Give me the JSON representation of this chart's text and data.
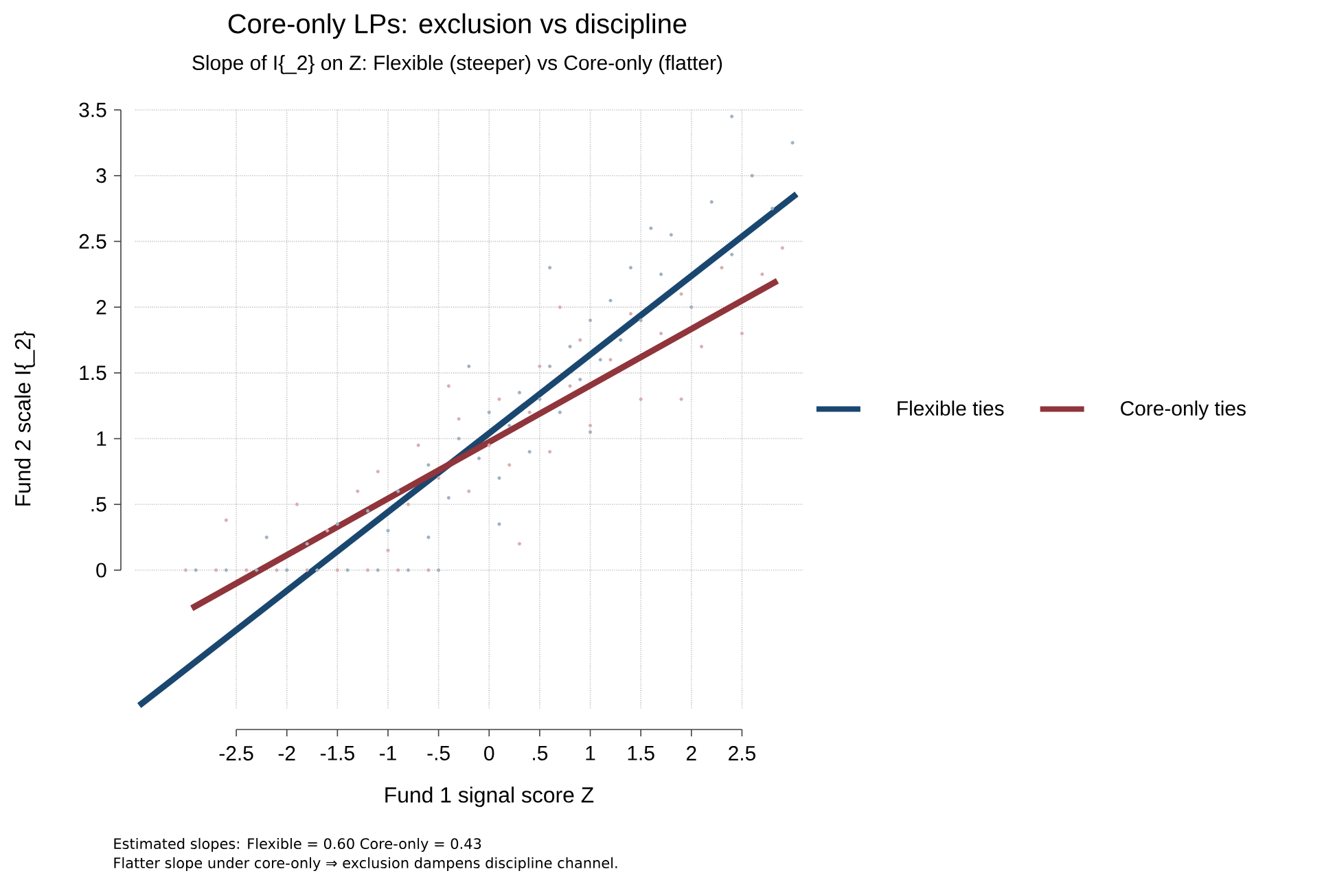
{
  "chart_data": {
    "type": "scatter",
    "title": "Core-only LPs: exclusion vs discipline",
    "subtitle": "Slope of I{_2} on Z: Flexible (steeper) vs Core-only (flatter)",
    "xlabel": "Fund 1 signal score  Z",
    "ylabel": "Fund 2 scale  I{_2}",
    "xlim": [
      -3.5,
      3.1
    ],
    "ylim": [
      -1.05,
      3.5
    ],
    "xticks": [
      -2.5,
      -2,
      -1.5,
      -1,
      {
        "value": -0.5,
        "label": "-.5"
      },
      0,
      {
        "value": 0.5,
        "label": ".5"
      },
      1,
      1.5,
      2,
      2.5
    ],
    "yticks": [
      0,
      {
        "value": 0.5,
        "label": ".5"
      },
      1,
      1.5,
      2,
      2.5,
      3,
      3.5
    ],
    "grid": true,
    "legend": "right",
    "series": [
      {
        "marker": "circle",
        "color": "#9fb0c2",
        "x": [
          -2.9,
          -2.6,
          -2.3,
          -2.0,
          -1.7,
          -1.4,
          -1.1,
          -0.8,
          -0.5,
          -2.2,
          -1.8,
          -1.5,
          -1.2,
          -1.0,
          -0.9,
          -0.6,
          -0.4,
          -0.3,
          -0.1,
          0,
          0.1,
          0.2,
          0.3,
          0.4,
          0.5,
          0.6,
          0.7,
          0.8,
          0.9,
          1.0,
          1.1,
          1.2,
          1.3,
          1.4,
          1.5,
          1.7,
          1.8,
          2.0,
          2.2,
          2.4,
          2.6,
          2.8,
          3.0,
          2.4,
          -0.2,
          0.6,
          0.1,
          1.0,
          -0.6,
          1.6
        ],
        "values": [
          0,
          0,
          0,
          0,
          0,
          0,
          0,
          0,
          0,
          0.25,
          0.2,
          0.35,
          0.45,
          0.3,
          0.6,
          0.8,
          0.55,
          1.0,
          0.85,
          1.2,
          0.7,
          1.1,
          1.35,
          0.9,
          1.3,
          1.55,
          1.2,
          1.7,
          1.45,
          1.9,
          1.6,
          2.05,
          1.75,
          2.3,
          1.9,
          2.25,
          2.55,
          2.0,
          2.8,
          2.4,
          3.0,
          2.75,
          3.25,
          3.45,
          1.55,
          2.3,
          0.35,
          1.05,
          0.25,
          2.6
        ]
      },
      {
        "marker": "circle",
        "color": "#d9aeb1",
        "x": [
          -3.0,
          -2.7,
          -2.4,
          -2.1,
          -1.8,
          -1.5,
          -1.2,
          -0.9,
          -0.6,
          -2.6,
          -1.9,
          -1.6,
          -1.3,
          -1.1,
          -0.8,
          -0.7,
          -0.5,
          -0.3,
          -0.2,
          0,
          0.1,
          0.2,
          0.4,
          0.5,
          0.6,
          0.8,
          0.9,
          1.0,
          1.2,
          1.4,
          1.5,
          1.7,
          1.9,
          2.1,
          2.3,
          2.5,
          2.7,
          2.9,
          0.3,
          0.7,
          -0.4,
          1.9,
          -1.0
        ],
        "values": [
          0,
          0,
          0,
          0,
          0,
          0,
          0,
          0,
          0,
          0.38,
          0.5,
          0.3,
          0.6,
          0.75,
          0.5,
          0.95,
          0.7,
          1.15,
          0.6,
          0.95,
          1.3,
          0.8,
          1.2,
          1.55,
          0.9,
          1.4,
          1.75,
          1.1,
          1.6,
          1.95,
          1.3,
          1.8,
          2.1,
          1.7,
          2.3,
          1.8,
          2.25,
          2.45,
          0.2,
          2.0,
          1.4,
          1.3,
          0.15
        ]
      },
      {
        "type": "line",
        "name": "Flexible ties",
        "color": "#1a476f",
        "x": [
          -3.46,
          3.04
        ],
        "values": [
          -1.03,
          2.86
        ]
      },
      {
        "type": "line",
        "name": "Core-only ties",
        "color": "#90353b",
        "x": [
          -2.94,
          2.85
        ],
        "values": [
          -0.29,
          2.2
        ]
      }
    ],
    "annotations": [
      "Estimated slopes: Flexible = 0.60   Core-only = 0.43",
      "Flatter slope under core-only ⇒ exclusion dampens discipline channel."
    ]
  }
}
